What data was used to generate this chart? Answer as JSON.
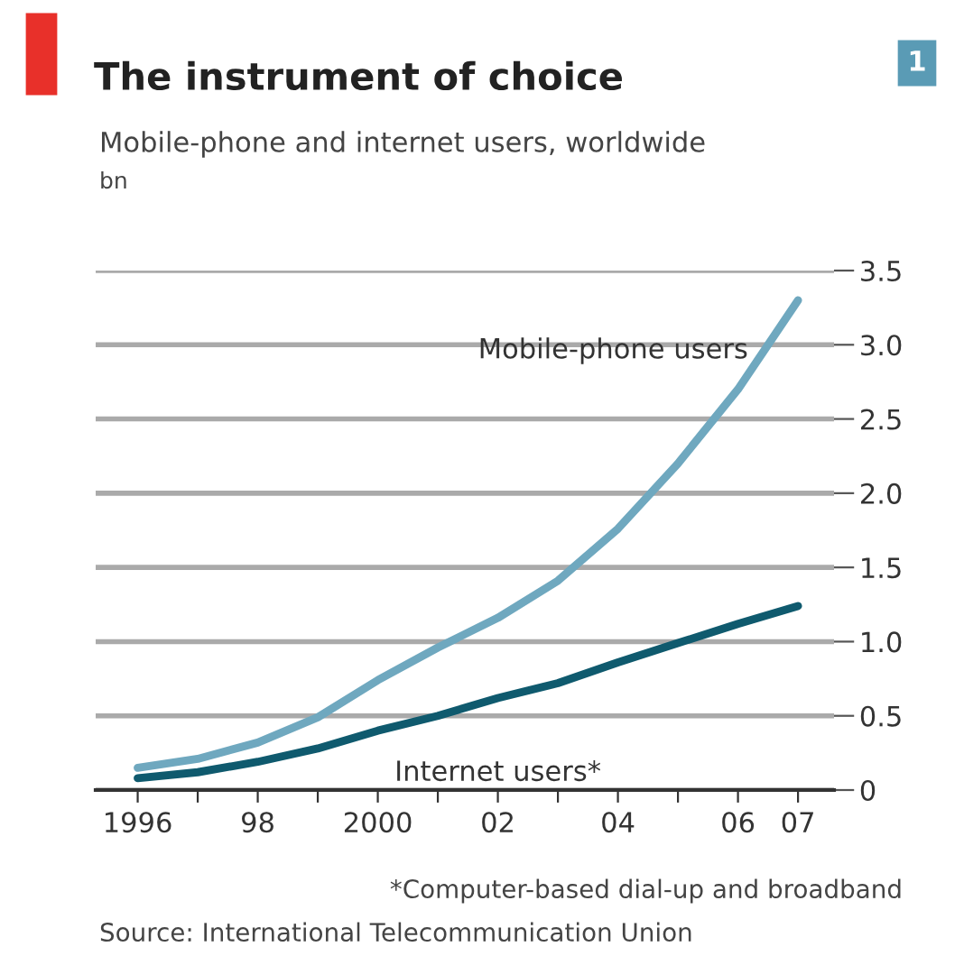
{
  "chart_data": {
    "type": "line",
    "title": "The instrument of choice",
    "subtitle": "Mobile-phone and internet users, worldwide",
    "ylabel": "bn",
    "x": [
      1996,
      1997,
      1998,
      1999,
      2000,
      2001,
      2002,
      2003,
      2004,
      2005,
      2006,
      2007
    ],
    "series": [
      {
        "name": "Mobile-phone users",
        "color": "#6fa8bf",
        "values": [
          0.15,
          0.21,
          0.32,
          0.49,
          0.74,
          0.96,
          1.16,
          1.41,
          1.76,
          2.2,
          2.7,
          3.3
        ]
      },
      {
        "name": "Internet users*",
        "color": "#0f5a6e",
        "values": [
          0.08,
          0.12,
          0.19,
          0.28,
          0.4,
          0.5,
          0.62,
          0.72,
          0.86,
          0.99,
          1.12,
          1.24
        ]
      }
    ],
    "xlim": [
      1995.3,
      2007.6
    ],
    "xticks": [
      1996,
      {
        "value": 1997,
        "label": null
      },
      {
        "value": 1998,
        "label": "98"
      },
      {
        "value": 1999,
        "label": null
      },
      2000,
      {
        "value": 2001,
        "label": null
      },
      {
        "value": 2002,
        "label": "02"
      },
      {
        "value": 2003,
        "label": null
      },
      {
        "value": 2004,
        "label": "04"
      },
      {
        "value": 2005,
        "label": null
      },
      {
        "value": 2006,
        "label": "06"
      },
      {
        "value": 2007,
        "label": "07"
      }
    ],
    "ylim": [
      0,
      3.5
    ],
    "yticks": [
      0,
      0.5,
      {
        "value": 1.0,
        "label": "1.0"
      },
      1.5,
      {
        "value": 2.0,
        "label": "2.0"
      },
      2.5,
      {
        "value": 3.0,
        "label": "3.0"
      },
      3.5
    ],
    "grid": "y",
    "legend": false,
    "marker": "none",
    "line_style": "solid",
    "annotations": [
      "1",
      "*Computer-based dial-up and broadband",
      "Source: International Telecommunication Union"
    ]
  }
}
